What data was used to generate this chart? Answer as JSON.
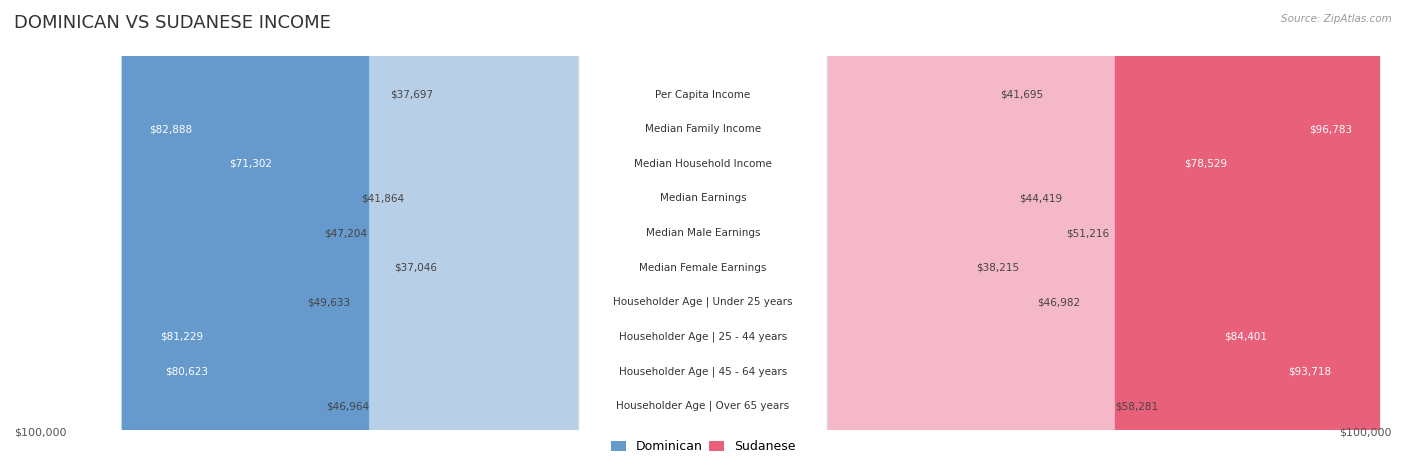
{
  "title": "DOMINICAN VS SUDANESE INCOME",
  "source": "Source: ZipAtlas.com",
  "categories": [
    "Per Capita Income",
    "Median Family Income",
    "Median Household Income",
    "Median Earnings",
    "Median Male Earnings",
    "Median Female Earnings",
    "Householder Age | Under 25 years",
    "Householder Age | 25 - 44 years",
    "Householder Age | 45 - 64 years",
    "Householder Age | Over 65 years"
  ],
  "dominican_values": [
    37697,
    82888,
    71302,
    41864,
    47204,
    37046,
    49633,
    81229,
    80623,
    46964
  ],
  "sudanese_values": [
    41695,
    96783,
    78529,
    44419,
    51216,
    38215,
    46982,
    84401,
    93718,
    58281
  ],
  "dominican_color_light": "#b8cfe8",
  "dominican_color_dark": "#6699cc",
  "sudanese_color_light": "#f5b8c8",
  "sudanese_color_dark": "#e8607a",
  "axis_max": 100000,
  "background_color": "#ffffff",
  "row_bg_even": "#f8f8f8",
  "row_bg_odd": "#ffffff",
  "row_border_color": "#dddddd",
  "label_bg_color": "#ffffff",
  "title_fontsize": 13,
  "label_fontsize": 7.5,
  "value_fontsize": 7.5,
  "legend_fontsize": 9,
  "dominican_threshold": 60000,
  "sudanese_threshold": 60000
}
